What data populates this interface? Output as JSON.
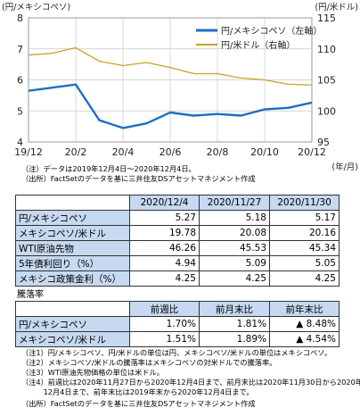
{
  "chart_data": {
    "type": "line",
    "y_left_label": "(円/メキシコペソ)",
    "y_right_label": "(円/米ドル)",
    "x_unit": "(年/月)",
    "x_ticks": [
      "19/12",
      "20/2",
      "20/4",
      "20/6",
      "20/8",
      "20/10",
      "20/12"
    ],
    "y_left_ticks": [
      "8",
      "7",
      "6",
      "5",
      "4"
    ],
    "y_right_ticks": [
      "115",
      "110",
      "105",
      "100",
      "95"
    ],
    "y_left_range": [
      4,
      8
    ],
    "y_right_range": [
      95,
      115
    ],
    "grid": true,
    "legend_position": "top-right",
    "x_months": [
      0,
      1,
      2,
      3,
      4,
      5,
      6,
      7,
      8,
      9,
      10,
      11,
      12
    ],
    "series": [
      {
        "name": "円/メキシコペソ（左軸）",
        "axis": "left",
        "color": "#1f6fc1",
        "values": [
          5.65,
          5.75,
          5.85,
          4.7,
          4.45,
          4.6,
          4.95,
          4.85,
          4.9,
          4.85,
          5.05,
          5.1,
          5.27
        ]
      },
      {
        "name": "円/米ドル（右軸）",
        "axis": "right",
        "color": "#c9a227",
        "values": [
          109.0,
          109.3,
          110.2,
          108.0,
          107.3,
          107.8,
          107.0,
          106.0,
          106.0,
          105.3,
          105.0,
          104.3,
          104.2
        ]
      }
    ]
  },
  "notes_chart": [
    "（注）データは2019年12月4日～2020年12月4日。",
    "（出所）FactSetのデータを基に三井住友DSアセットマネジメント作成"
  ],
  "table1": {
    "headers": [
      "",
      "2020/12/4",
      "2020/11/27",
      "2020/11/30"
    ],
    "rows": [
      {
        "label": "円/メキシコペソ",
        "values": [
          "5.27",
          "5.18",
          "5.17"
        ]
      },
      {
        "label": "メキシコペソ/米ドル",
        "values": [
          "19.78",
          "20.08",
          "20.16"
        ]
      },
      {
        "label": "WTI原油先物",
        "values": [
          "46.26",
          "45.53",
          "45.34"
        ]
      },
      {
        "label": "5年債利回り（%）",
        "values": [
          "4.94",
          "5.09",
          "5.05"
        ]
      },
      {
        "label": "メキシコ政策金利（%）",
        "values": [
          "4.25",
          "4.25",
          "4.25"
        ]
      }
    ]
  },
  "section_title": "騰落率",
  "table2": {
    "headers": [
      "",
      "前週比",
      "前月末比",
      "前年末比"
    ],
    "rows": [
      {
        "label": "円/メキシコペソ",
        "values": [
          "1.70%",
          "1.81%",
          "▲ 8.48%"
        ]
      },
      {
        "label": "メキシコペソ/米ドル",
        "values": [
          "1.51%",
          "1.89%",
          "▲ 4.54%"
        ]
      }
    ]
  },
  "notes_bottom": [
    "（注1）円/メキシコペソ、円/米ドルの単位は円、メキシコペソ/米ドルの単位はメキシコペソ。",
    "（注2）メキシコペソ/米ドルの騰落率はメキシコペソの対米ドルでの騰落率。",
    "（注3）WTI原油先物価格の単位は米ドル。",
    "（注4）前週比は2020年11月27日から2020年12月4日まで、前月末比は2020年11月30日から2020年",
    "　　　12月4日まで、前年末比は2019年末から2020年12月4日まで。",
    "（出所）FactSetのデータを基に三井住友DSアセットマネジメント作成"
  ]
}
